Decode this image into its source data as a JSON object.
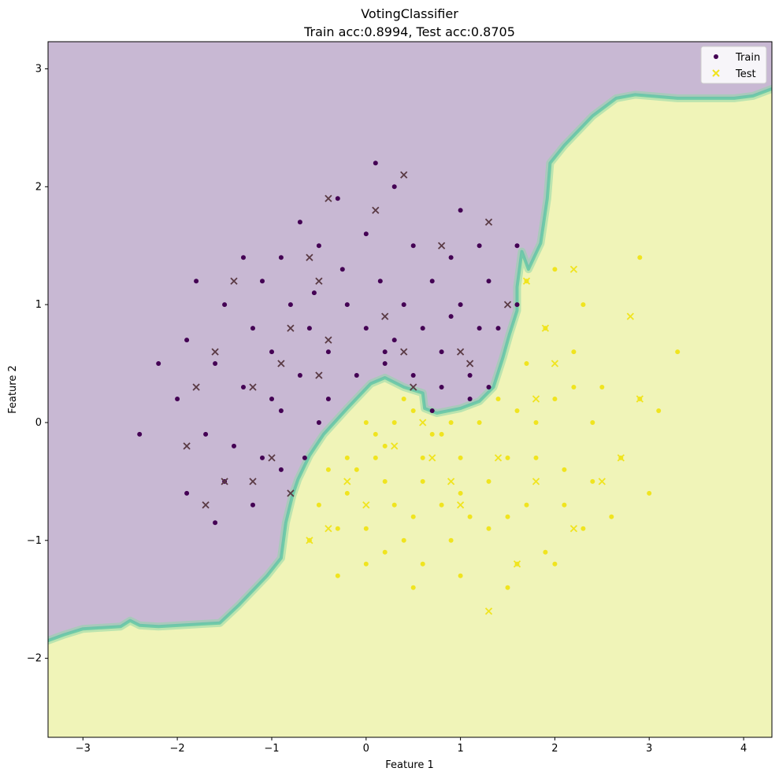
{
  "chart_data": {
    "type": "scatter",
    "title": "VotingClassifier",
    "subtitle": "Train acc:0.8994, Test acc:0.8705",
    "xlabel": "Feature 1",
    "ylabel": "Feature 2",
    "xlim": [
      -3.37,
      4.3
    ],
    "ylim": [
      -2.67,
      3.23
    ],
    "grid": false,
    "legend": {
      "placement": "top-right",
      "entries": [
        "Train",
        "Test"
      ]
    },
    "x_ticks": [
      {
        "value": -3,
        "label": "−3"
      },
      {
        "value": -2,
        "label": "−2"
      },
      {
        "value": -1,
        "label": "−1"
      },
      {
        "value": 0,
        "label": "0"
      },
      {
        "value": 1,
        "label": "1"
      },
      {
        "value": 2,
        "label": "2"
      },
      {
        "value": 3,
        "label": "3"
      },
      {
        "value": 4,
        "label": "4"
      }
    ],
    "y_ticks": [
      {
        "value": -2,
        "label": "−2"
      },
      {
        "value": -1,
        "label": "−1"
      },
      {
        "value": 0,
        "label": "0"
      },
      {
        "value": 1,
        "label": "1"
      },
      {
        "value": 2,
        "label": "2"
      },
      {
        "value": 3,
        "label": "3"
      }
    ],
    "colors": {
      "class_0": "#440154",
      "class_1": "#f0e41f",
      "region_class_0": "#c8b8d3",
      "region_class_1": "#f0f4b8",
      "boundary": "#5fc4a6"
    },
    "decision_boundary": [
      [
        -3.37,
        -1.85
      ],
      [
        -3.2,
        -1.8
      ],
      [
        -3.0,
        -1.75
      ],
      [
        -2.6,
        -1.73
      ],
      [
        -2.5,
        -1.68
      ],
      [
        -2.4,
        -1.72
      ],
      [
        -2.2,
        -1.73
      ],
      [
        -1.55,
        -1.7
      ],
      [
        -1.35,
        -1.55
      ],
      [
        -1.05,
        -1.3
      ],
      [
        -0.9,
        -1.15
      ],
      [
        -0.85,
        -0.85
      ],
      [
        -0.78,
        -0.62
      ],
      [
        -0.72,
        -0.48
      ],
      [
        -0.6,
        -0.28
      ],
      [
        -0.45,
        -0.1
      ],
      [
        -0.2,
        0.12
      ],
      [
        0.05,
        0.33
      ],
      [
        0.2,
        0.38
      ],
      [
        0.4,
        0.3
      ],
      [
        0.6,
        0.25
      ],
      [
        0.62,
        0.12
      ],
      [
        0.75,
        0.08
      ],
      [
        1.0,
        0.12
      ],
      [
        1.2,
        0.18
      ],
      [
        1.35,
        0.3
      ],
      [
        1.45,
        0.55
      ],
      [
        1.52,
        0.75
      ],
      [
        1.6,
        0.95
      ],
      [
        1.6,
        1.15
      ],
      [
        1.65,
        1.45
      ],
      [
        1.72,
        1.3
      ],
      [
        1.85,
        1.52
      ],
      [
        1.92,
        1.9
      ],
      [
        1.95,
        2.2
      ],
      [
        2.1,
        2.35
      ],
      [
        2.4,
        2.6
      ],
      [
        2.65,
        2.75
      ],
      [
        2.85,
        2.78
      ],
      [
        3.3,
        2.75
      ],
      [
        3.9,
        2.75
      ],
      [
        4.1,
        2.77
      ],
      [
        4.3,
        2.83
      ]
    ],
    "series": [
      {
        "name": "Train",
        "marker": "dot",
        "points": [
          [
            -1.5,
            1.0
          ],
          [
            -1.2,
            0.8
          ],
          [
            -1.0,
            0.6
          ],
          [
            -0.8,
            1.0
          ],
          [
            -0.6,
            0.8
          ],
          [
            -0.4,
            0.6
          ],
          [
            -0.2,
            1.0
          ],
          [
            0.0,
            0.8
          ],
          [
            0.2,
            0.6
          ],
          [
            0.4,
            1.0
          ],
          [
            0.6,
            0.8
          ],
          [
            0.8,
            0.6
          ],
          [
            1.0,
            1.0
          ],
          [
            1.2,
            0.8
          ],
          [
            -1.3,
            0.3
          ],
          [
            -1.0,
            0.2
          ],
          [
            -0.7,
            0.4
          ],
          [
            -0.4,
            0.2
          ],
          [
            -0.1,
            0.4
          ],
          [
            0.2,
            0.5
          ],
          [
            0.5,
            0.4
          ],
          [
            0.8,
            0.3
          ],
          [
            1.1,
            0.4
          ],
          [
            -1.4,
            -0.2
          ],
          [
            -1.1,
            -0.3
          ],
          [
            -0.9,
            -0.4
          ],
          [
            -1.6,
            0.5
          ],
          [
            -0.9,
            1.4
          ],
          [
            -0.5,
            1.5
          ],
          [
            0.0,
            1.6
          ],
          [
            0.5,
            1.5
          ],
          [
            0.9,
            1.4
          ],
          [
            1.3,
            1.2
          ],
          [
            -0.3,
            1.9
          ],
          [
            0.3,
            2.0
          ],
          [
            0.1,
            2.2
          ],
          [
            -1.9,
            0.7
          ],
          [
            -2.2,
            0.5
          ],
          [
            -2.0,
            0.2
          ],
          [
            -1.7,
            -0.1
          ],
          [
            -1.5,
            -0.5
          ],
          [
            -1.2,
            -0.7
          ],
          [
            -1.9,
            -0.6
          ],
          [
            -2.4,
            -0.1
          ],
          [
            -1.6,
            -0.85
          ],
          [
            -0.6,
            -1.0
          ],
          [
            -0.3,
            -0.9
          ],
          [
            0.6,
            -1.2
          ],
          [
            1.6,
            -1.2
          ],
          [
            1.3,
            -0.5
          ],
          [
            1.6,
            0.1
          ],
          [
            1.0,
            -0.6
          ],
          [
            0.6,
            -0.5
          ],
          [
            -0.2,
            -0.3
          ],
          [
            0.2,
            -0.2
          ],
          [
            0.5,
            -0.8
          ],
          [
            -0.55,
            1.1
          ],
          [
            -0.25,
            1.3
          ],
          [
            0.15,
            1.2
          ],
          [
            0.7,
            1.2
          ],
          [
            -0.9,
            0.1
          ],
          [
            -1.1,
            1.2
          ],
          [
            -1.3,
            1.4
          ],
          [
            -1.8,
            1.2
          ],
          [
            1.0,
            1.8
          ],
          [
            1.6,
            1.5
          ],
          [
            0.0,
            0.0
          ],
          [
            0.3,
            0.7
          ],
          [
            0.9,
            0.9
          ],
          [
            -0.5,
            0.0
          ],
          [
            1.2,
            1.5
          ],
          [
            -0.7,
            1.7
          ],
          [
            0.3,
            0.0
          ],
          [
            0.8,
            -0.1
          ],
          [
            1.2,
            0.0
          ],
          [
            1.5,
            -0.3
          ],
          [
            1.8,
            0.0
          ],
          [
            2.0,
            0.2
          ],
          [
            1.7,
            0.5
          ],
          [
            1.4,
            0.8
          ],
          [
            1.0,
            -0.3
          ],
          [
            0.6,
            -0.3
          ],
          [
            0.2,
            -0.5
          ],
          [
            -0.2,
            -0.6
          ],
          [
            -0.4,
            -0.4
          ],
          [
            0.0,
            -0.9
          ],
          [
            0.4,
            -1.0
          ],
          [
            0.9,
            -1.0
          ],
          [
            1.3,
            -0.9
          ],
          [
            1.7,
            -0.7
          ],
          [
            2.1,
            -0.4
          ],
          [
            2.4,
            0.0
          ],
          [
            2.5,
            0.3
          ],
          [
            2.2,
            0.6
          ],
          [
            1.9,
            0.8
          ],
          [
            1.6,
            1.0
          ],
          [
            2.7,
            -0.3
          ],
          [
            2.9,
            0.2
          ],
          [
            3.0,
            -0.6
          ],
          [
            2.3,
            -0.9
          ],
          [
            1.9,
            -1.1
          ],
          [
            1.5,
            -1.4
          ],
          [
            1.0,
            -1.3
          ],
          [
            0.5,
            -1.4
          ],
          [
            0.0,
            -1.2
          ],
          [
            -0.3,
            -1.3
          ],
          [
            -0.5,
            -0.7
          ],
          [
            -0.65,
            -0.3
          ],
          [
            2.0,
            -1.2
          ],
          [
            2.6,
            -0.8
          ],
          [
            3.3,
            0.6
          ],
          [
            3.1,
            0.1
          ],
          [
            2.9,
            1.4
          ],
          [
            2.3,
            1.0
          ],
          [
            2.0,
            1.3
          ],
          [
            1.7,
            1.2
          ],
          [
            0.4,
            0.2
          ],
          [
            0.1,
            -0.1
          ],
          [
            0.7,
            0.1
          ],
          [
            1.1,
            0.2
          ],
          [
            1.4,
            0.2
          ],
          [
            1.1,
            -0.8
          ],
          [
            0.8,
            -0.7
          ],
          [
            0.3,
            -0.7
          ],
          [
            -0.1,
            -0.4
          ],
          [
            0.5,
            0.1
          ],
          [
            0.9,
            0.0
          ],
          [
            1.3,
            0.3
          ],
          [
            2.1,
            -0.7
          ],
          [
            1.8,
            -0.3
          ],
          [
            2.2,
            0.3
          ],
          [
            0.1,
            -0.3
          ],
          [
            0.7,
            -0.1
          ],
          [
            1.5,
            -0.8
          ],
          [
            0.2,
            -1.1
          ],
          [
            2.4,
            -0.5
          ]
        ]
      },
      {
        "name": "Test",
        "marker": "x",
        "points": [
          [
            -1.2,
            0.3
          ],
          [
            -0.8,
            0.8
          ],
          [
            -0.5,
            1.2
          ],
          [
            0.1,
            1.8
          ],
          [
            0.4,
            2.1
          ],
          [
            -0.4,
            1.9
          ],
          [
            -1.4,
            1.2
          ],
          [
            -1.6,
            0.6
          ],
          [
            -1.8,
            0.3
          ],
          [
            -1.9,
            -0.2
          ],
          [
            -1.7,
            -0.7
          ],
          [
            -1.5,
            -0.5
          ],
          [
            -0.9,
            0.5
          ],
          [
            0.2,
            0.9
          ],
          [
            0.8,
            1.5
          ],
          [
            1.3,
            1.7
          ],
          [
            1.5,
            1.0
          ],
          [
            1.7,
            1.2
          ],
          [
            1.9,
            0.8
          ],
          [
            1.1,
            0.5
          ],
          [
            -1.2,
            -0.5
          ],
          [
            -0.6,
            -1.0
          ],
          [
            0.9,
            -0.5
          ],
          [
            1.6,
            -1.2
          ],
          [
            1.4,
            -0.3
          ],
          [
            0.6,
            0.0
          ],
          [
            -0.5,
            0.4
          ],
          [
            -1.0,
            -0.3
          ],
          [
            -0.2,
            -0.5
          ],
          [
            0.3,
            -0.2
          ],
          [
            0.7,
            -0.3
          ],
          [
            1.0,
            -0.7
          ],
          [
            2.7,
            -0.3
          ],
          [
            2.2,
            1.3
          ],
          [
            1.8,
            -0.5
          ],
          [
            -0.4,
            -0.9
          ],
          [
            1.3,
            -1.6
          ],
          [
            2.5,
            -0.5
          ],
          [
            -0.8,
            -0.6
          ],
          [
            2.9,
            0.2
          ],
          [
            2.2,
            -0.9
          ],
          [
            1.0,
            0.6
          ],
          [
            0.4,
            0.6
          ],
          [
            -0.6,
            1.4
          ],
          [
            2.8,
            0.9
          ],
          [
            2.0,
            0.5
          ],
          [
            -0.4,
            0.7
          ],
          [
            0.5,
            0.3
          ],
          [
            1.8,
            0.2
          ],
          [
            0.0,
            -0.7
          ]
        ]
      }
    ]
  }
}
